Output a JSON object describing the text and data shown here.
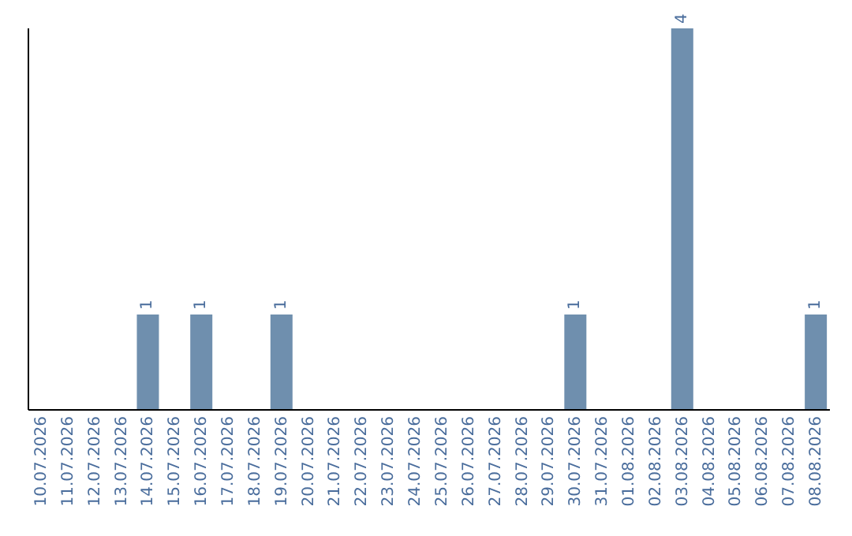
{
  "chart_data": {
    "type": "bar",
    "categories": [
      "10.07.2026",
      "11.07.2026",
      "12.07.2026",
      "13.07.2026",
      "14.07.2026",
      "15.07.2026",
      "16.07.2026",
      "17.07.2026",
      "18.07.2026",
      "19.07.2026",
      "20.07.2026",
      "21.07.2026",
      "22.07.2026",
      "23.07.2026",
      "24.07.2026",
      "25.07.2026",
      "26.07.2026",
      "27.07.2026",
      "28.07.2026",
      "29.07.2026",
      "30.07.2026",
      "31.07.2026",
      "01.08.2026",
      "02.08.2026",
      "03.08.2026",
      "04.08.2026",
      "05.08.2026",
      "06.08.2026",
      "07.08.2026",
      "08.08.2026"
    ],
    "values": [
      0,
      0,
      0,
      0,
      1,
      0,
      1,
      0,
      0,
      1,
      0,
      0,
      0,
      0,
      0,
      0,
      0,
      0,
      0,
      0,
      1,
      0,
      0,
      0,
      4,
      0,
      0,
      0,
      0,
      1
    ],
    "value_labels": [
      null,
      null,
      null,
      null,
      "1",
      null,
      "1",
      null,
      null,
      "1",
      null,
      null,
      null,
      null,
      null,
      null,
      null,
      null,
      null,
      null,
      "1",
      null,
      null,
      null,
      "4",
      null,
      null,
      null,
      null,
      "1"
    ],
    "color": "#6f8fae",
    "ylim": [
      0,
      4
    ],
    "grid": false,
    "legend": false
  }
}
